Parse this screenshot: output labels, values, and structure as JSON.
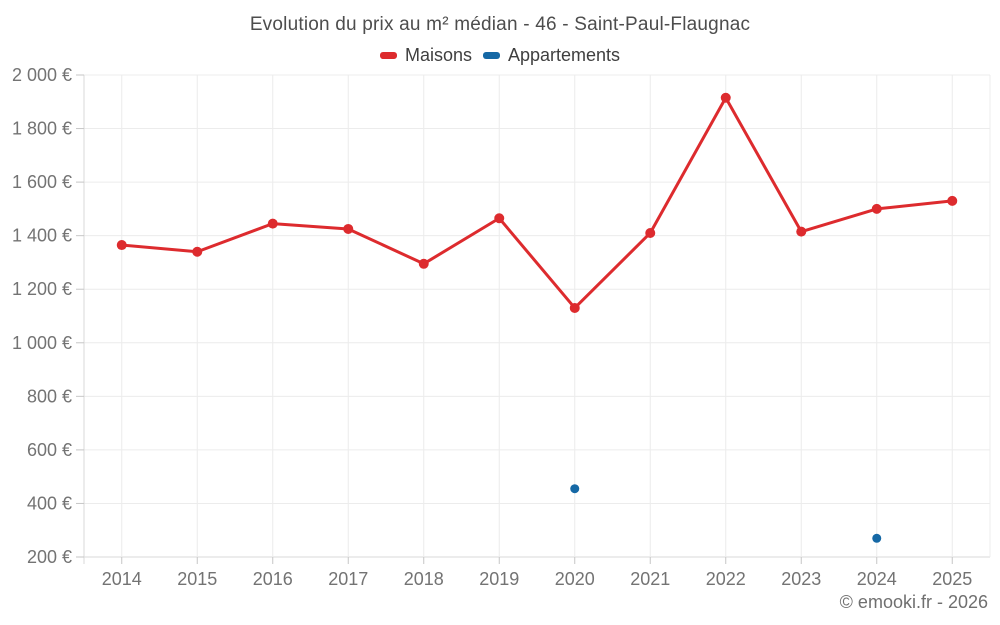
{
  "title": "Evolution du prix au m² médian - 46 - Saint-Paul-Flaugnac",
  "copyright": "© emooki.fr - 2026",
  "colors": {
    "maisons": "#dd2b2e",
    "appartements": "#1568a5",
    "grid": "#ececec",
    "axis": "#dadada",
    "tick": "#c6c6c6",
    "tick_label": "#737373",
    "title_text": "#4d4d4d",
    "legend_text": "#3f3f3f",
    "copyright_text": "#6f6f6f"
  },
  "chart_data": {
    "type": "line",
    "title": "Evolution du prix au m² médian - 46 - Saint-Paul-Flaugnac",
    "categories": [
      "2014",
      "2015",
      "2016",
      "2017",
      "2018",
      "2019",
      "2020",
      "2021",
      "2022",
      "2023",
      "2024",
      "2025"
    ],
    "series": [
      {
        "name": "Maisons",
        "color": "#dd2b2e",
        "mode": "line+markers",
        "values": [
          1365,
          1340,
          1445,
          1425,
          1295,
          1465,
          1130,
          1410,
          1915,
          1415,
          1500,
          1530
        ]
      },
      {
        "name": "Appartements",
        "color": "#1568a5",
        "mode": "markers",
        "values": [
          null,
          null,
          null,
          null,
          null,
          null,
          455,
          null,
          null,
          null,
          270,
          null
        ]
      }
    ],
    "xlabel": "",
    "ylabel": "",
    "ylim": [
      200,
      2000
    ],
    "ytick_step": 200,
    "ytick_suffix": " €",
    "grid": true,
    "legend_position": "top"
  }
}
